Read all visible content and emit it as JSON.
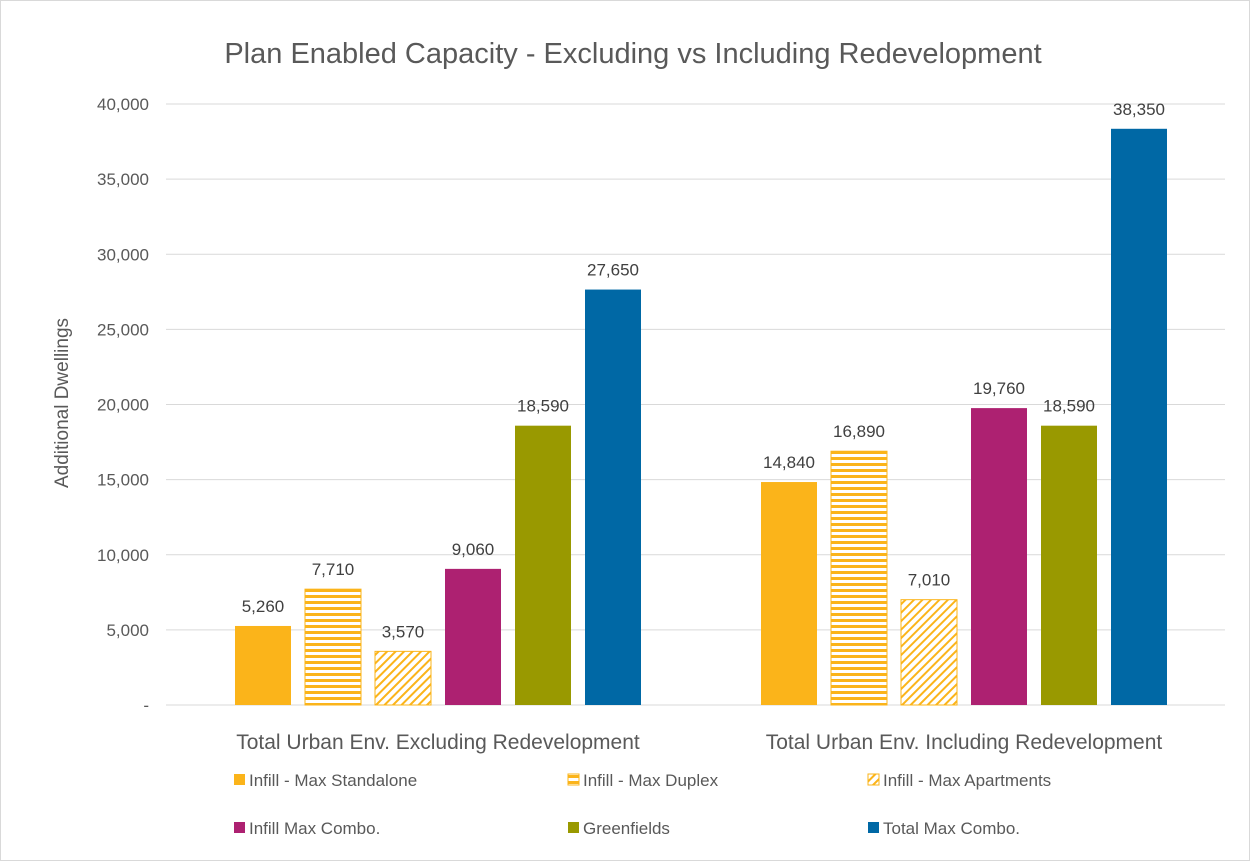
{
  "chart_data": {
    "type": "bar",
    "title": "Plan Enabled Capacity - Excluding vs Including Redevelopment",
    "xlabel": "",
    "ylabel": "Additional Dwellings",
    "ylim": [
      0,
      40000
    ],
    "yticks": [
      {
        "value": 0,
        "label": "-"
      },
      {
        "value": 5000,
        "label": "5,000"
      },
      {
        "value": 10000,
        "label": "10,000"
      },
      {
        "value": 15000,
        "label": "15,000"
      },
      {
        "value": 20000,
        "label": "20,000"
      },
      {
        "value": 25000,
        "label": "25,000"
      },
      {
        "value": 30000,
        "label": "30,000"
      },
      {
        "value": 35000,
        "label": "35,000"
      },
      {
        "value": 40000,
        "label": "40,000"
      }
    ],
    "grid": true,
    "legend_position": "bottom",
    "categories": [
      "Total Urban Env. Excluding Redevelopment",
      "Total Urban Env. Including Redevelopment"
    ],
    "series": [
      {
        "name": "Infill - Max Standalone",
        "values": [
          5260,
          14840
        ],
        "labels": [
          "5,260",
          "14,840"
        ],
        "color": "#FBB41A",
        "fill": "solid"
      },
      {
        "name": "Infill - Max Duplex",
        "values": [
          7710,
          16890
        ],
        "labels": [
          "7,710",
          "16,890"
        ],
        "color": "#FBB41A",
        "fill": "horizontal-stripes"
      },
      {
        "name": "Infill - Max Apartments",
        "values": [
          3570,
          7010
        ],
        "labels": [
          "3,570",
          "7,010"
        ],
        "color": "#FBB41A",
        "fill": "diagonal-hatch"
      },
      {
        "name": "Infill Max Combo.",
        "values": [
          9060,
          19760
        ],
        "labels": [
          "9,060",
          "19,760"
        ],
        "color": "#AD2171",
        "fill": "solid"
      },
      {
        "name": "Greenfields",
        "values": [
          18590,
          18590
        ],
        "labels": [
          "18,590",
          "18,590"
        ],
        "color": "#999900",
        "fill": "solid"
      },
      {
        "name": "Total Max Combo.",
        "values": [
          27650,
          38350
        ],
        "labels": [
          "27,650",
          "38,350"
        ],
        "color": "#0068A5",
        "fill": "solid"
      }
    ]
  }
}
